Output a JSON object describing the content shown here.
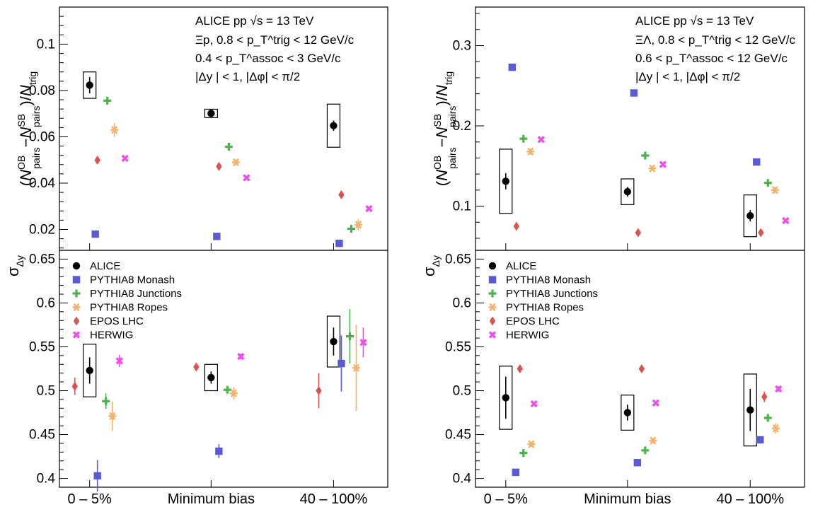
{
  "chart_data": [
    {
      "id": "xi-p-yield",
      "type": "scatter",
      "ylabel": "(N^{OB}_{pairs} − N^{SB}_{pairs})/N_{trig}",
      "ylim": [
        0.011,
        0.116
      ],
      "yticks": [
        0.02,
        0.04,
        0.06,
        0.08,
        0.1
      ],
      "yticklabels": [
        "0.02",
        "0.04",
        "0.06",
        "0.08",
        "0.1"
      ],
      "categories": [
        "0 – 5%",
        "Minimum bias",
        "40 – 100%"
      ],
      "annotation": [
        "ALICE   pp √s = 13 TeV",
        "Ξp, 0.8 < p_T^trig < 12 GeV/c",
        "0.4 < p_T^assoc < 3 GeV/c",
        "|Δy | < 1, |Δφ| < π/2"
      ],
      "series": [
        {
          "name": "ALICE",
          "values": [
            0.0823,
            0.0701,
            0.0648
          ],
          "stat": [
            0.0035,
            0.0012,
            0.0022
          ],
          "syst": [
            0.0057,
            0.0018,
            0.0093
          ]
        },
        {
          "name": "PYTHIA8 Monash",
          "values": [
            0.018,
            0.017,
            0.014
          ],
          "stat": [
            0,
            0,
            0
          ]
        },
        {
          "name": "PYTHIA8 Junctions",
          "values": [
            0.0756,
            0.0557,
            0.0203
          ],
          "stat": [
            0.0015,
            0.0008,
            0.0008
          ]
        },
        {
          "name": "PYTHIA8 Ropes",
          "values": [
            0.063,
            0.049,
            0.022
          ],
          "stat": [
            0.003,
            0.0013,
            0.0025
          ]
        },
        {
          "name": "EPOS LHC",
          "values": [
            0.0499,
            0.0472,
            0.035
          ],
          "stat": [
            0,
            0,
            0
          ]
        },
        {
          "name": "HERWIG",
          "values": [
            0.0507,
            0.0423,
            0.029
          ],
          "stat": [
            0,
            0,
            0
          ]
        }
      ]
    },
    {
      "id": "xi-lambda-yield",
      "type": "scatter",
      "ylabel": "(N^{OB}_{pairs} − N^{SB}_{pairs})/N_{trig}",
      "ylim": [
        0.045,
        0.348
      ],
      "yticks": [
        0.1,
        0.2,
        0.3
      ],
      "yticklabels": [
        "0.1",
        "0.2",
        "0.3"
      ],
      "categories": [
        "0 – 5%",
        "Minimum bias",
        "40 – 100%"
      ],
      "annotation": [
        "ALICE   pp √s = 13 TeV",
        "ΞΛ, 0.8 < p_T^trig < 12 GeV/c",
        "0.6 < p_T^assoc < 12 GeV/c",
        "|Δy | < 1, |Δφ| < π/2"
      ],
      "series": [
        {
          "name": "ALICE",
          "values": [
            0.131,
            0.118,
            0.088
          ],
          "stat": [
            0.01,
            0.006,
            0.007
          ],
          "syst": [
            0.04,
            0.016,
            0.026
          ]
        },
        {
          "name": "PYTHIA8 Monash",
          "values": [
            0.273,
            0.241,
            0.155
          ],
          "stat": [
            0,
            0,
            0
          ]
        },
        {
          "name": "PYTHIA8 Junctions",
          "values": [
            0.184,
            0.163,
            0.129
          ],
          "stat": [
            0.003,
            0.003,
            0.003
          ]
        },
        {
          "name": "PYTHIA8 Ropes",
          "values": [
            0.168,
            0.147,
            0.12
          ],
          "stat": [
            0.004,
            0.003,
            0.004
          ]
        },
        {
          "name": "EPOS LHC",
          "values": [
            0.075,
            0.067,
            0.067
          ],
          "stat": [
            0,
            0,
            0
          ]
        },
        {
          "name": "HERWIG",
          "values": [
            0.183,
            0.152,
            0.082
          ],
          "stat": [
            0,
            0,
            0
          ]
        }
      ]
    },
    {
      "id": "xi-p-width",
      "type": "scatter",
      "ylabel": "σ_Δy",
      "ylim": [
        0.39,
        0.66
      ],
      "yticks": [
        0.4,
        0.45,
        0.5,
        0.55,
        0.6,
        0.65
      ],
      "yticklabels": [
        "0.4",
        "0.45",
        "0.5",
        "0.55",
        "0.6",
        "0.65"
      ],
      "categories": [
        "0 – 5%",
        "Minimum bias",
        "40 – 100%"
      ],
      "legend": [
        "ALICE",
        "PYTHIA8 Monash",
        "PYTHIA8 Junctions",
        "PYTHIA8 Ropes",
        "EPOS LHC",
        "HERWIG"
      ],
      "series": [
        {
          "name": "ALICE",
          "values": [
            0.523,
            0.515,
            0.556
          ],
          "stat": [
            0.015,
            0.007,
            0.016
          ],
          "syst": [
            0.03,
            0.015,
            0.029
          ]
        },
        {
          "name": "PYTHIA8 Monash",
          "values": [
            0.403,
            0.431,
            0.531
          ],
          "stat": [
            0.018,
            0.008,
            0.032
          ]
        },
        {
          "name": "PYTHIA8 Junctions",
          "values": [
            0.488,
            0.501,
            0.562
          ],
          "stat": [
            0.009,
            0.004,
            0.031
          ]
        },
        {
          "name": "PYTHIA8 Ropes",
          "values": [
            0.471,
            0.497,
            0.526
          ],
          "stat": [
            0.017,
            0.007,
            0.049
          ]
        },
        {
          "name": "EPOS LHC",
          "values": [
            0.505,
            0.527,
            0.5
          ],
          "stat": [
            0.01,
            0.003,
            0.02
          ]
        },
        {
          "name": "HERWIG",
          "values": [
            0.534,
            0.539,
            0.555
          ],
          "stat": [
            0.007,
            0.003,
            0.017
          ]
        }
      ]
    },
    {
      "id": "xi-lambda-width",
      "type": "scatter",
      "ylabel": "σ_Δy",
      "ylim": [
        0.39,
        0.66
      ],
      "yticks": [
        0.4,
        0.45,
        0.5,
        0.55,
        0.6,
        0.65
      ],
      "yticklabels": [
        "0.4",
        "0.45",
        "0.5",
        "0.55",
        "0.6",
        "0.65"
      ],
      "categories": [
        "0 – 5%",
        "Minimum bias",
        "40 – 100%"
      ],
      "legend": [
        "ALICE",
        "PYTHIA8 Monash",
        "PYTHIA8 Junctions",
        "PYTHIA8 Ropes",
        "EPOS LHC",
        "HERWIG"
      ],
      "series": [
        {
          "name": "ALICE",
          "values": [
            0.492,
            0.475,
            0.478
          ],
          "stat": [
            0.024,
            0.009,
            0.024
          ],
          "syst": [
            0.036,
            0.02,
            0.041
          ]
        },
        {
          "name": "PYTHIA8 Monash",
          "values": [
            0.407,
            0.418,
            0.444
          ],
          "stat": [
            0,
            0,
            0
          ]
        },
        {
          "name": "PYTHIA8 Junctions",
          "values": [
            0.429,
            0.432,
            0.469
          ],
          "stat": [
            0.003,
            0.003,
            0.004
          ]
        },
        {
          "name": "PYTHIA8 Ropes",
          "values": [
            0.439,
            0.443,
            0.457
          ],
          "stat": [
            0.003,
            0.003,
            0.006
          ]
        },
        {
          "name": "EPOS LHC",
          "values": [
            0.525,
            0.525,
            0.493
          ],
          "stat": [
            0.003,
            0.003,
            0.006
          ]
        },
        {
          "name": "HERWIG",
          "values": [
            0.485,
            0.486,
            0.502
          ],
          "stat": [
            0,
            0,
            0.003
          ]
        }
      ]
    }
  ],
  "colors": {
    "ALICE": "#000000",
    "PYTHIA8 Monash": "#5a5ad6",
    "PYTHIA8 Junctions": "#4cb24c",
    "PYTHIA8 Ropes": "#f5b26b",
    "EPOS LHC": "#d9534f",
    "HERWIG": "#f04cf0"
  },
  "markers": {
    "ALICE": "circle",
    "PYTHIA8 Monash": "square",
    "PYTHIA8 Junctions": "plus",
    "PYTHIA8 Ropes": "star",
    "EPOS LHC": "diamond",
    "HERWIG": "cross"
  }
}
